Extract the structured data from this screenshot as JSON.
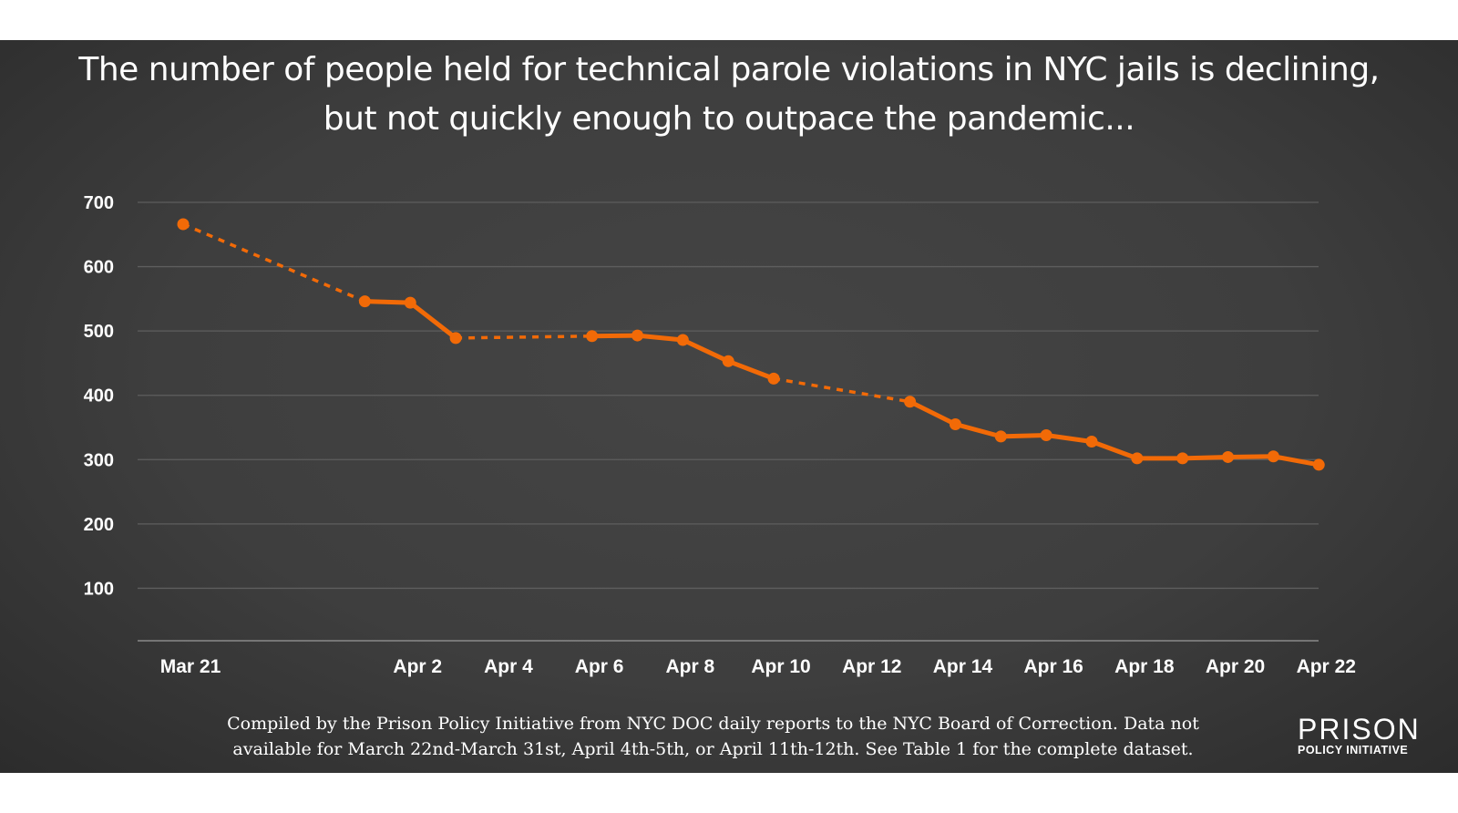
{
  "title": {
    "line1": "The number of people held for technical parole violations in NYC jails is declining,",
    "line2": "but not quickly enough to outpace the pandemic..."
  },
  "chart_data": {
    "type": "line",
    "title": "The number of people held for technical parole violations in NYC jails is declining, but not quickly enough to outpace the pandemic...",
    "xlabel": "",
    "ylabel": "",
    "ylim": [
      0,
      700
    ],
    "yticks": [
      "100",
      "200",
      "300",
      "400",
      "500",
      "600",
      "700"
    ],
    "xticks": [
      "Mar 21",
      "Apr 2",
      "Apr 4",
      "Apr 6",
      "Apr 8",
      "Apr 10",
      "Apr 12",
      "Apr 14",
      "Apr 16",
      "Apr 18",
      "Apr 20",
      "Apr 22"
    ],
    "grid": true,
    "legend": "none",
    "line_color": "#f26a07",
    "missing_data_style": "dashed",
    "points": [
      {
        "x": "Mar 21",
        "y": 666
      },
      {
        "x": "Apr 1",
        "y": 546
      },
      {
        "x": "Apr 2",
        "y": 544
      },
      {
        "x": "Apr 3",
        "y": 489
      },
      {
        "x": "Apr 6",
        "y": 492
      },
      {
        "x": "Apr 7",
        "y": 493
      },
      {
        "x": "Apr 8",
        "y": 486
      },
      {
        "x": "Apr 9",
        "y": 453
      },
      {
        "x": "Apr 10",
        "y": 426
      },
      {
        "x": "Apr 13",
        "y": 390
      },
      {
        "x": "Apr 14",
        "y": 355
      },
      {
        "x": "Apr 15",
        "y": 336
      },
      {
        "x": "Apr 16",
        "y": 338
      },
      {
        "x": "Apr 17",
        "y": 328
      },
      {
        "x": "Apr 18",
        "y": 302
      },
      {
        "x": "Apr 19",
        "y": 302
      },
      {
        "x": "Apr 20",
        "y": 304
      },
      {
        "x": "Apr 21",
        "y": 305
      },
      {
        "x": "Apr 22",
        "y": 292
      }
    ]
  },
  "footnote": {
    "line1": "Compiled by the Prison Policy Initiative from NYC DOC daily reports to the NYC Board of Correction. Data  not",
    "line2": "available for March 22nd-March 31st, April 4th-5th, or April 11th-12th. See Table 1 for the complete dataset."
  },
  "logo": {
    "top": "PRISON",
    "bottom": "POLICY INITIATIVE"
  }
}
